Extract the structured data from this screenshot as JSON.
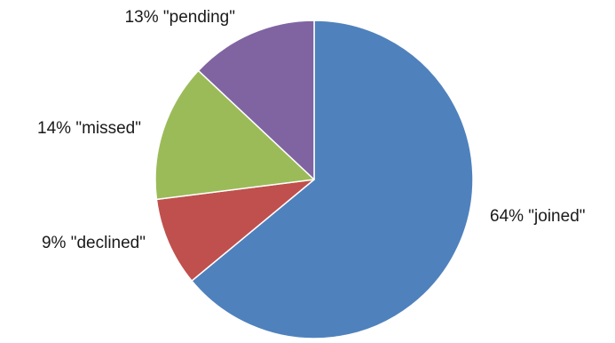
{
  "chart_data": {
    "type": "pie",
    "start_angle_deg": 0,
    "direction": "clockwise",
    "slices": [
      {
        "label": "64% \"joined\"",
        "value": 64,
        "color": "#4f81bd"
      },
      {
        "label": "9% \"declined\"",
        "value": 9,
        "color": "#c0504d"
      },
      {
        "label": "14% \"missed\"",
        "value": 14,
        "color": "#9bbb59"
      },
      {
        "label": "13% \"pending\"",
        "value": 13,
        "color": "#8064a2"
      }
    ],
    "legend": "none"
  }
}
